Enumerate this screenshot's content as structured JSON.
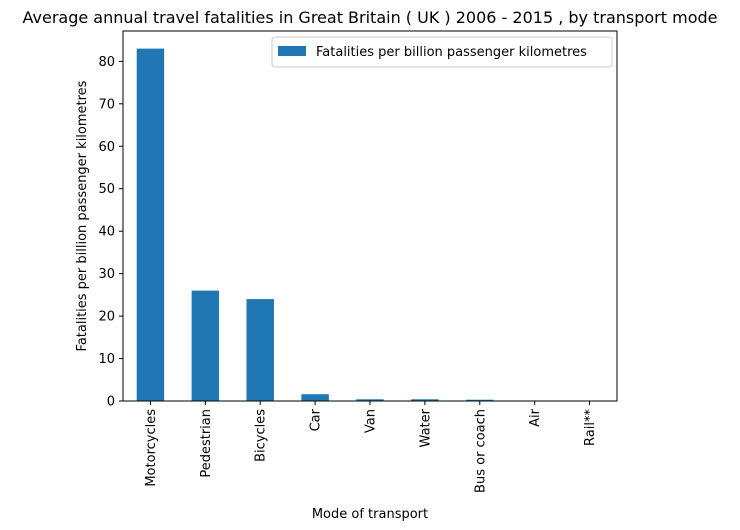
{
  "chart_data": {
    "type": "bar",
    "title": "Average annual travel fatalities in Great Britain ( UK ) 2006 - 2015 , by transport mode",
    "xlabel": "Mode of transport",
    "ylabel": "Fatalities per billion passenger kilometres",
    "categories": [
      "Motorcycles",
      "Pedestrian",
      "Bicycles",
      "Car",
      "Van",
      "Water",
      "Bus or coach",
      "Air",
      "Rail**"
    ],
    "series": [
      {
        "name": "Fatalities per billion passenger kilometres",
        "values": [
          83,
          26,
          24,
          1.6,
          0.4,
          0.4,
          0.3,
          0.01,
          0.01
        ],
        "color": "#1f77b4"
      }
    ],
    "ylim": [
      0,
      87.15
    ],
    "yticks": [
      "0",
      "10",
      "20",
      "30",
      "40",
      "50",
      "60",
      "70",
      "80"
    ],
    "legend_position": "top-right",
    "grid": false
  }
}
